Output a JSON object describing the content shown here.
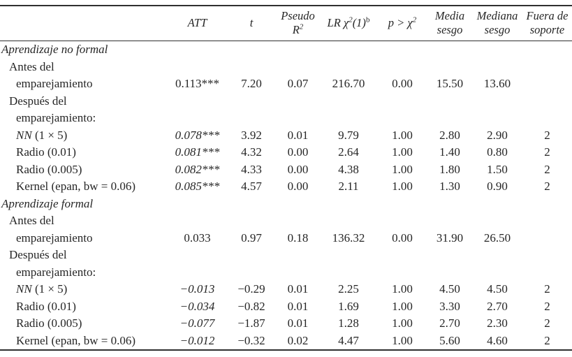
{
  "table": {
    "header": {
      "att": "ATT",
      "t": "t",
      "pseudo_line1": "Pseudo",
      "pseudo_base": "R",
      "pseudo_sup": "2",
      "lr_pre": "LR χ",
      "lr_sup1": "2",
      "lr_mid": "(1)",
      "lr_sup2": "b",
      "p_pre": "p > χ",
      "p_sup": "2",
      "media_line1": "Media",
      "media_line2": "sesgo",
      "mediana_line1": "Mediana",
      "mediana_line2": "sesgo",
      "fuera_line1": "Fuera de",
      "fuera_line2": "soporte"
    },
    "rows": [
      {
        "indent": 0,
        "label_parts": [
          {
            "t": "Aprendizaje no formal",
            "i": true
          }
        ],
        "cells": [
          "",
          "",
          "",
          "",
          "",
          "",
          "",
          ""
        ]
      },
      {
        "indent": 1,
        "label_parts": [
          {
            "t": "Antes del",
            "i": false
          }
        ],
        "cells": [
          "",
          "",
          "",
          "",
          "",
          "",
          "",
          ""
        ]
      },
      {
        "indent": 2,
        "label_parts": [
          {
            "t": "emparejamiento",
            "i": false
          }
        ],
        "cells": [
          "0.113***",
          "7.20",
          "0.07",
          "216.70",
          "0.00",
          "15.50",
          "13.60",
          ""
        ]
      },
      {
        "indent": 1,
        "label_parts": [
          {
            "t": "Después del",
            "i": false
          }
        ],
        "cells": [
          "",
          "",
          "",
          "",
          "",
          "",
          "",
          ""
        ]
      },
      {
        "indent": 2,
        "label_parts": [
          {
            "t": "emparejamiento:",
            "i": false
          }
        ],
        "cells": [
          "",
          "",
          "",
          "",
          "",
          "",
          "",
          ""
        ]
      },
      {
        "indent": 2,
        "label_parts": [
          {
            "t": "NN",
            "i": true
          },
          {
            "t": " (1 × 5)",
            "i": false
          }
        ],
        "att_italic": true,
        "cells": [
          "0.078***",
          "3.92",
          "0.01",
          "9.79",
          "1.00",
          "2.80",
          "2.90",
          "2"
        ]
      },
      {
        "indent": 2,
        "label_parts": [
          {
            "t": "Radio (0.01)",
            "i": false
          }
        ],
        "att_italic": true,
        "cells": [
          "0.081***",
          "4.32",
          "0.00",
          "2.64",
          "1.00",
          "1.40",
          "0.80",
          "2"
        ]
      },
      {
        "indent": 2,
        "label_parts": [
          {
            "t": "Radio (0.005)",
            "i": false
          }
        ],
        "att_italic": true,
        "cells": [
          "0.082***",
          "4.33",
          "0.00",
          "4.38",
          "1.00",
          "1.80",
          "1.50",
          "2"
        ]
      },
      {
        "indent": 2,
        "label_parts": [
          {
            "t": "Kernel (epan, bw = 0.06)",
            "i": false
          }
        ],
        "att_italic": true,
        "cells": [
          "0.085***",
          "4.57",
          "0.00",
          "2.11",
          "1.00",
          "1.30",
          "0.90",
          "2"
        ]
      },
      {
        "indent": 0,
        "label_parts": [
          {
            "t": "Aprendizaje formal",
            "i": true
          }
        ],
        "cells": [
          "",
          "",
          "",
          "",
          "",
          "",
          "",
          ""
        ]
      },
      {
        "indent": 1,
        "label_parts": [
          {
            "t": "Antes del",
            "i": false
          }
        ],
        "cells": [
          "",
          "",
          "",
          "",
          "",
          "",
          "",
          ""
        ]
      },
      {
        "indent": 2,
        "label_parts": [
          {
            "t": "emparejamiento",
            "i": false
          }
        ],
        "cells": [
          "0.033",
          "0.97",
          "0.18",
          "136.32",
          "0.00",
          "31.90",
          "26.50",
          ""
        ]
      },
      {
        "indent": 1,
        "label_parts": [
          {
            "t": "Después del",
            "i": false
          }
        ],
        "cells": [
          "",
          "",
          "",
          "",
          "",
          "",
          "",
          ""
        ]
      },
      {
        "indent": 2,
        "label_parts": [
          {
            "t": "emparejamiento:",
            "i": false
          }
        ],
        "cells": [
          "",
          "",
          "",
          "",
          "",
          "",
          "",
          ""
        ]
      },
      {
        "indent": 2,
        "label_parts": [
          {
            "t": "NN",
            "i": true
          },
          {
            "t": " (1 × 5)",
            "i": false
          }
        ],
        "att_italic": true,
        "cells": [
          "−0.013",
          "−0.29",
          "0.01",
          "2.25",
          "1.00",
          "4.50",
          "4.50",
          "2"
        ]
      },
      {
        "indent": 2,
        "label_parts": [
          {
            "t": "Radio (0.01)",
            "i": false
          }
        ],
        "att_italic": true,
        "cells": [
          "−0.034",
          "−0.82",
          "0.01",
          "1.69",
          "1.00",
          "3.30",
          "2.70",
          "2"
        ]
      },
      {
        "indent": 2,
        "label_parts": [
          {
            "t": "Radio (0.005)",
            "i": false
          }
        ],
        "att_italic": true,
        "cells": [
          "−0.077",
          "−1.87",
          "0.01",
          "1.28",
          "1.00",
          "2.70",
          "2.30",
          "2"
        ]
      },
      {
        "indent": 2,
        "label_parts": [
          {
            "t": "Kernel (epan, bw = 0.06)",
            "i": false
          }
        ],
        "att_italic": true,
        "cells": [
          "−0.012",
          "−0.32",
          "0.02",
          "4.47",
          "1.00",
          "5.60",
          "4.60",
          "2"
        ]
      }
    ]
  }
}
